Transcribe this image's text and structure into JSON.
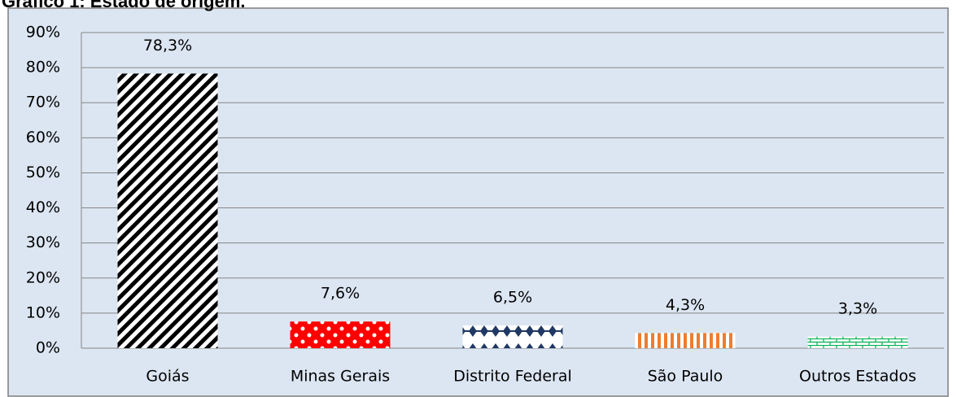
{
  "chart_data": {
    "type": "bar",
    "title": "Gráfico 1: Estado de origem.",
    "categories": [
      "Goiás",
      "Minas Gerais",
      "Distrito Federal",
      "São Paulo",
      "Outros Estados"
    ],
    "values": [
      78.3,
      7.6,
      6.5,
      4.3,
      3.3
    ],
    "value_labels": [
      "78,3%",
      "7,6%",
      "6,5%",
      "4,3%",
      "3,3%"
    ],
    "colors": [
      "#000000",
      "#ff0000",
      "#1f3864",
      "#ed7d31",
      "#00b050"
    ],
    "ylim": [
      0,
      90
    ],
    "yticks": [
      {
        "value": 0,
        "label": "0%"
      },
      {
        "value": 10,
        "label": "10%"
      },
      {
        "value": 20,
        "label": "20%"
      },
      {
        "value": 30,
        "label": "30%"
      },
      {
        "value": 40,
        "label": "40%"
      },
      {
        "value": 50,
        "label": "50%"
      },
      {
        "value": 60,
        "label": "60%"
      },
      {
        "value": 70,
        "label": "70%"
      },
      {
        "value": 80,
        "label": "80%"
      },
      {
        "value": 90,
        "label": "90%"
      }
    ],
    "grid": true
  }
}
